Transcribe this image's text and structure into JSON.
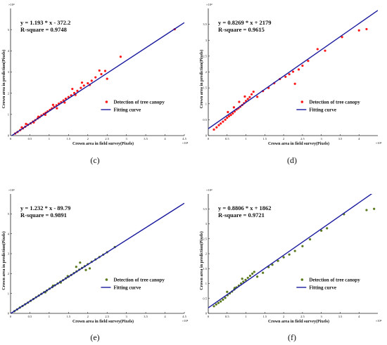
{
  "chart_data": [
    {
      "type": "scatter",
      "panel_label": "(c)",
      "equation": "y = 1.193 * x - 372.2",
      "r_square": "R-square = 0.9748",
      "xlabel": "Crown area in field survey(Pixels)",
      "ylabel": "Crown area in prediction(Pixels)",
      "x_multiplier": "×10⁴",
      "y_multiplier": "×10⁴",
      "xlim": [
        0,
        45000
      ],
      "ylim": [
        0,
        60000
      ],
      "x_ticks": [
        "0",
        "0.5",
        "1",
        "1.5",
        "2",
        "2.5",
        "3",
        "3.5",
        "4",
        "4.5"
      ],
      "x_tick_values": [
        0,
        5000,
        10000,
        15000,
        20000,
        25000,
        30000,
        35000,
        40000,
        45000
      ],
      "y_ticks": [
        "0",
        "1",
        "2",
        "3",
        "4",
        "5"
      ],
      "y_tick_values": [
        0,
        10000,
        20000,
        30000,
        40000,
        50000
      ],
      "fit": {
        "slope": 1.193,
        "intercept": -372.2
      },
      "point_color": "#ff1a1a",
      "line_color": "#1a1a9e",
      "legend": {
        "points": "Detection of tree canopy",
        "line": "Fitting  curve",
        "position": "lower-right"
      },
      "points": [
        [
          1200,
          1000
        ],
        [
          1800,
          1700
        ],
        [
          2500,
          2600
        ],
        [
          3200,
          3400
        ],
        [
          3800,
          4200
        ],
        [
          4500,
          5100
        ],
        [
          5200,
          5800
        ],
        [
          5800,
          6600
        ],
        [
          6400,
          7300
        ],
        [
          7000,
          8100
        ],
        [
          7500,
          8700
        ],
        [
          8000,
          9500
        ],
        [
          8600,
          10200
        ],
        [
          9100,
          10800
        ],
        [
          9600,
          11400
        ],
        [
          10200,
          12100
        ],
        [
          10700,
          12800
        ],
        [
          11300,
          13500
        ],
        [
          11900,
          14300
        ],
        [
          12500,
          15100
        ],
        [
          13100,
          15800
        ],
        [
          13700,
          16600
        ],
        [
          14300,
          17400
        ],
        [
          15000,
          18200
        ],
        [
          15700,
          19000
        ],
        [
          16500,
          20100
        ],
        [
          17300,
          21100
        ],
        [
          18200,
          22500
        ],
        [
          19000,
          23600
        ],
        [
          20000,
          24700
        ],
        [
          21000,
          25900
        ],
        [
          22000,
          27500
        ],
        [
          23500,
          29000
        ],
        [
          24500,
          30500
        ],
        [
          25000,
          26800
        ],
        [
          28500,
          37200
        ],
        [
          23000,
          30700
        ],
        [
          18500,
          25000
        ],
        [
          16000,
          22000
        ],
        [
          42500,
          50200
        ],
        [
          4000,
          5500
        ],
        [
          6000,
          6200
        ],
        [
          9000,
          9800
        ],
        [
          12000,
          12900
        ],
        [
          14000,
          15600
        ],
        [
          11000,
          14500
        ],
        [
          16800,
          19200
        ],
        [
          7200,
          8900
        ],
        [
          2900,
          3900
        ],
        [
          20500,
          23900
        ]
      ]
    },
    {
      "type": "scatter",
      "panel_label": "(d)",
      "equation": "y = 0.8269 * x + 2179",
      "r_square": "R-square = 0.9615",
      "xlabel": "Crown area in field survey(Pixels)",
      "ylabel": "Crown area in prediction(Pixels)",
      "x_multiplier": "×10⁴",
      "y_multiplier": "×10⁴",
      "xlim": [
        0,
        45000
      ],
      "ylim": [
        0,
        40000
      ],
      "x_ticks": [
        "0",
        "0.5",
        "1",
        "1.5",
        "2",
        "2.5",
        "3",
        "3.5",
        "4"
      ],
      "x_tick_values": [
        0,
        5000,
        10000,
        15000,
        20000,
        25000,
        30000,
        35000,
        40000
      ],
      "y_ticks": [
        "0",
        "0.5",
        "1",
        "1.5",
        "2",
        "2.5",
        "3",
        "3.5"
      ],
      "y_tick_values": [
        0,
        5000,
        10000,
        15000,
        20000,
        25000,
        30000,
        35000
      ],
      "fit": {
        "slope": 0.8269,
        "intercept": 2179
      },
      "point_color": "#ff1a1a",
      "line_color": "#1a1a9e",
      "legend": {
        "points": "Detection of tree canopy",
        "line": "Fitting  curve",
        "position": "lower-right"
      },
      "points": [
        [
          1500,
          1900
        ],
        [
          2200,
          2600
        ],
        [
          2800,
          3300
        ],
        [
          3300,
          3800
        ],
        [
          3900,
          4400
        ],
        [
          4500,
          5000
        ],
        [
          5000,
          5600
        ],
        [
          5500,
          6100
        ],
        [
          6000,
          6500
        ],
        [
          6500,
          7000
        ],
        [
          7000,
          7600
        ],
        [
          7500,
          8200
        ],
        [
          8000,
          8600
        ],
        [
          8500,
          9100
        ],
        [
          9000,
          9600
        ],
        [
          9500,
          10200
        ],
        [
          10000,
          10900
        ],
        [
          10500,
          11500
        ],
        [
          11000,
          12100
        ],
        [
          11500,
          13000
        ],
        [
          12000,
          13800
        ],
        [
          5200,
          7400
        ],
        [
          6800,
          8900
        ],
        [
          8200,
          10600
        ],
        [
          9700,
          12300
        ],
        [
          16000,
          15000
        ],
        [
          17500,
          16500
        ],
        [
          19000,
          17800
        ],
        [
          20500,
          18500
        ],
        [
          21500,
          19300
        ],
        [
          22500,
          20100
        ],
        [
          24000,
          20800
        ],
        [
          25000,
          22000
        ],
        [
          26500,
          23500
        ],
        [
          29000,
          27200
        ],
        [
          31000,
          26700
        ],
        [
          35500,
          31000
        ],
        [
          40000,
          33100
        ],
        [
          42000,
          33500
        ],
        [
          23000,
          16300
        ],
        [
          13000,
          12200
        ],
        [
          14500,
          14000
        ]
      ]
    },
    {
      "type": "scatter",
      "panel_label": "(e)",
      "equation": "y = 1.232 * x - 89.79",
      "r_square": "R-square = 0.9891",
      "xlabel": "Crown area in field survey(Pixels)",
      "ylabel": "Crown area in prediction(Pixels)",
      "x_multiplier": "×10⁴",
      "y_multiplier": "×10⁴",
      "xlim": [
        0,
        45000
      ],
      "ylim": [
        0,
        60000
      ],
      "x_ticks": [
        "0",
        "0.5",
        "1",
        "1.5",
        "2",
        "2.5",
        "3",
        "3.5",
        "4",
        "4.5"
      ],
      "x_tick_values": [
        0,
        5000,
        10000,
        15000,
        20000,
        25000,
        30000,
        35000,
        40000,
        45000
      ],
      "y_ticks": [
        "0",
        "1",
        "2",
        "3",
        "4",
        "5"
      ],
      "y_tick_values": [
        0,
        10000,
        20000,
        30000,
        40000,
        50000
      ],
      "fit": {
        "slope": 1.232,
        "intercept": -89.79
      },
      "point_color": "#5c7a1f",
      "line_color": "#1a1a9e",
      "legend": {
        "points": "Detection of tree canopy",
        "line": "Fitting  curve",
        "position": "lower-right"
      },
      "points": [
        [
          1000,
          1100
        ],
        [
          1700,
          2000
        ],
        [
          2400,
          2900
        ],
        [
          3100,
          3700
        ],
        [
          3800,
          4600
        ],
        [
          4500,
          5400
        ],
        [
          5200,
          6300
        ],
        [
          5900,
          7200
        ],
        [
          6600,
          8100
        ],
        [
          7300,
          8900
        ],
        [
          8000,
          9800
        ],
        [
          8700,
          10700
        ],
        [
          9400,
          11500
        ],
        [
          10100,
          12400
        ],
        [
          10800,
          13200
        ],
        [
          11500,
          14100
        ],
        [
          12200,
          15000
        ],
        [
          12900,
          15900
        ],
        [
          13600,
          16700
        ],
        [
          14300,
          17600
        ],
        [
          15000,
          18400
        ],
        [
          15700,
          19300
        ],
        [
          16400,
          20200
        ],
        [
          17100,
          21100
        ],
        [
          17800,
          22000
        ],
        [
          18500,
          22800
        ],
        [
          19200,
          23700
        ],
        [
          20000,
          24700
        ],
        [
          21000,
          25900
        ],
        [
          22000,
          27100
        ],
        [
          23000,
          28300
        ],
        [
          24000,
          29500
        ],
        [
          25000,
          30700
        ],
        [
          27000,
          33300
        ],
        [
          18000,
          25500
        ],
        [
          17000,
          23400
        ],
        [
          19500,
          21800
        ],
        [
          20500,
          22600
        ],
        [
          9000,
          10600
        ],
        [
          11000,
          13900
        ],
        [
          13000,
          15500
        ],
        [
          14800,
          18700
        ]
      ]
    },
    {
      "type": "scatter",
      "panel_label": "(f)",
      "equation": "y = 0.8806 * x + 1862",
      "r_square": "R-square = 0.9721",
      "xlabel": "Crown area in field survey(Pixels)",
      "ylabel": "Crown area in prediction(Pixels)",
      "x_multiplier": "×10⁴",
      "y_multiplier": "×10⁴",
      "xlim": [
        0,
        45000
      ],
      "ylim": [
        0,
        40000
      ],
      "x_ticks": [
        "0",
        "0.5",
        "1",
        "1.5",
        "2",
        "2.5",
        "3",
        "3.5",
        "4"
      ],
      "x_tick_values": [
        0,
        5000,
        10000,
        15000,
        20000,
        25000,
        30000,
        35000,
        40000
      ],
      "y_ticks": [
        "0",
        "0.5",
        "1",
        "1.5",
        "2",
        "2.5",
        "3",
        "3.5"
      ],
      "y_tick_values": [
        0,
        5000,
        10000,
        15000,
        20000,
        25000,
        30000,
        35000
      ],
      "fit": {
        "slope": 0.8806,
        "intercept": 1862
      },
      "point_color": "#5c7a1f",
      "line_color": "#1a1a9e",
      "legend": {
        "points": "Detection of tree canopy",
        "line": "Fitting  curve",
        "position": "lower-right"
      },
      "points": [
        [
          1500,
          2400
        ],
        [
          2100,
          3000
        ],
        [
          2700,
          3500
        ],
        [
          3300,
          4000
        ],
        [
          3900,
          4600
        ],
        [
          4500,
          5200
        ],
        [
          5100,
          6100
        ],
        [
          5700,
          6700
        ],
        [
          6300,
          7300
        ],
        [
          6900,
          8000
        ],
        [
          7500,
          8700
        ],
        [
          8100,
          9300
        ],
        [
          8700,
          10000
        ],
        [
          9300,
          10600
        ],
        [
          9900,
          11200
        ],
        [
          10500,
          11900
        ],
        [
          11100,
          12600
        ],
        [
          11700,
          13300
        ],
        [
          12200,
          13900
        ],
        [
          5000,
          7200
        ],
        [
          7000,
          8500
        ],
        [
          9000,
          11600
        ],
        [
          16000,
          15500
        ],
        [
          17000,
          16300
        ],
        [
          18500,
          17600
        ],
        [
          20000,
          18800
        ],
        [
          21500,
          19700
        ],
        [
          23000,
          20900
        ],
        [
          25000,
          22500
        ],
        [
          27000,
          24800
        ],
        [
          30000,
          27700
        ],
        [
          31500,
          28500
        ],
        [
          36000,
          33200
        ],
        [
          42000,
          34600
        ],
        [
          44000,
          35000
        ],
        [
          13000,
          12300
        ],
        [
          14500,
          13600
        ]
      ]
    }
  ]
}
